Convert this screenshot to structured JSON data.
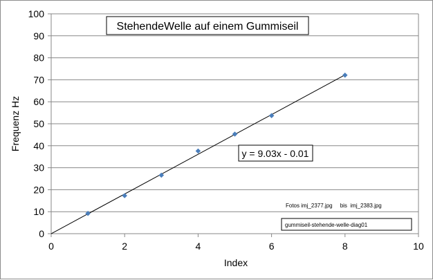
{
  "chart_data": {
    "type": "scatter",
    "title": "StehendeWelle auf einem Gummiseil",
    "xlabel": "Index",
    "ylabel": "Frequenz Hz",
    "xlim": [
      0,
      10
    ],
    "ylim": [
      0,
      100
    ],
    "x_ticks": [
      0,
      2,
      4,
      6,
      8,
      10
    ],
    "y_ticks": [
      0,
      10,
      20,
      30,
      40,
      50,
      60,
      70,
      80,
      90,
      100
    ],
    "grid": "horizontal",
    "series": [
      {
        "x": [
          1,
          2,
          3,
          4,
          5,
          6,
          8
        ],
        "y": [
          9.2,
          17.3,
          26.6,
          37.6,
          45.3,
          53.7,
          72.1
        ],
        "color": "#4a7ebb",
        "marker": "diamond"
      }
    ],
    "trendline": {
      "type": "linear",
      "slope": 9.03,
      "intercept": -0.01,
      "x_range": [
        0,
        8
      ],
      "equation": "y = 9.03x - 0.01",
      "color": "#000000"
    },
    "annotations": [
      "Fotos imj_2377.jpg     bis  imj_2383.jpg",
      "gummiseil-stehende-welle-diag01"
    ]
  }
}
